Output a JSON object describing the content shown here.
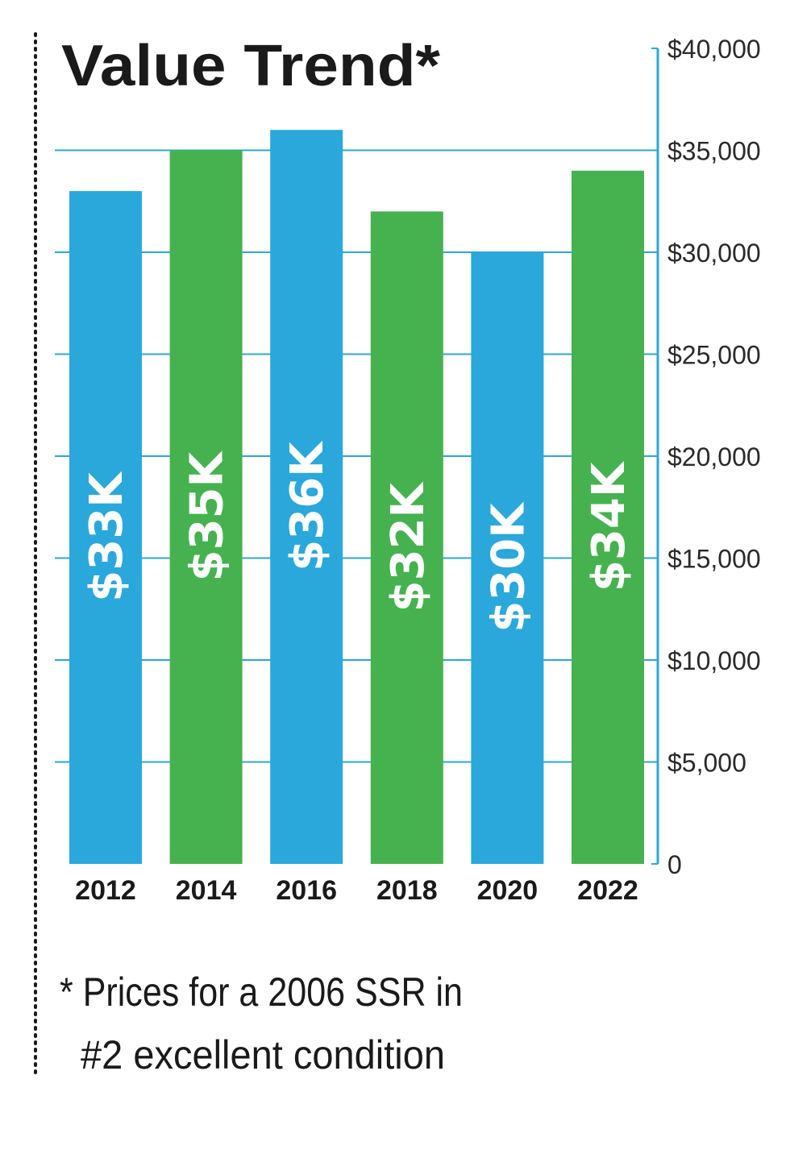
{
  "chart_data": {
    "type": "bar",
    "title": "Value Trend*",
    "categories": [
      "2012",
      "2014",
      "2016",
      "2018",
      "2020",
      "2022"
    ],
    "values": [
      33000,
      35000,
      36000,
      32000,
      30000,
      34000
    ],
    "data_labels": [
      "$33K",
      "$35K",
      "$36K",
      "$32K",
      "$30K",
      "$34K"
    ],
    "ylim": [
      0,
      40000
    ],
    "yticks": [
      0,
      5000,
      10000,
      15000,
      20000,
      25000,
      30000,
      35000,
      40000
    ],
    "ytick_labels": [
      "0",
      "$5,000",
      "$10,000",
      "$15,000",
      "$20,000",
      "$25,000",
      "$30,000",
      "$35,000",
      "$40,000"
    ],
    "y_axis_side": "right",
    "grid": true,
    "bar_colors": [
      "#2aa8dc",
      "#46b24f",
      "#2aa8dc",
      "#46b24f",
      "#2aa8dc",
      "#46b24f"
    ],
    "grid_color": "#2aa8dc",
    "footnote_lines": [
      "* Prices for a 2006 SSR in",
      "#2 excellent condition"
    ]
  }
}
